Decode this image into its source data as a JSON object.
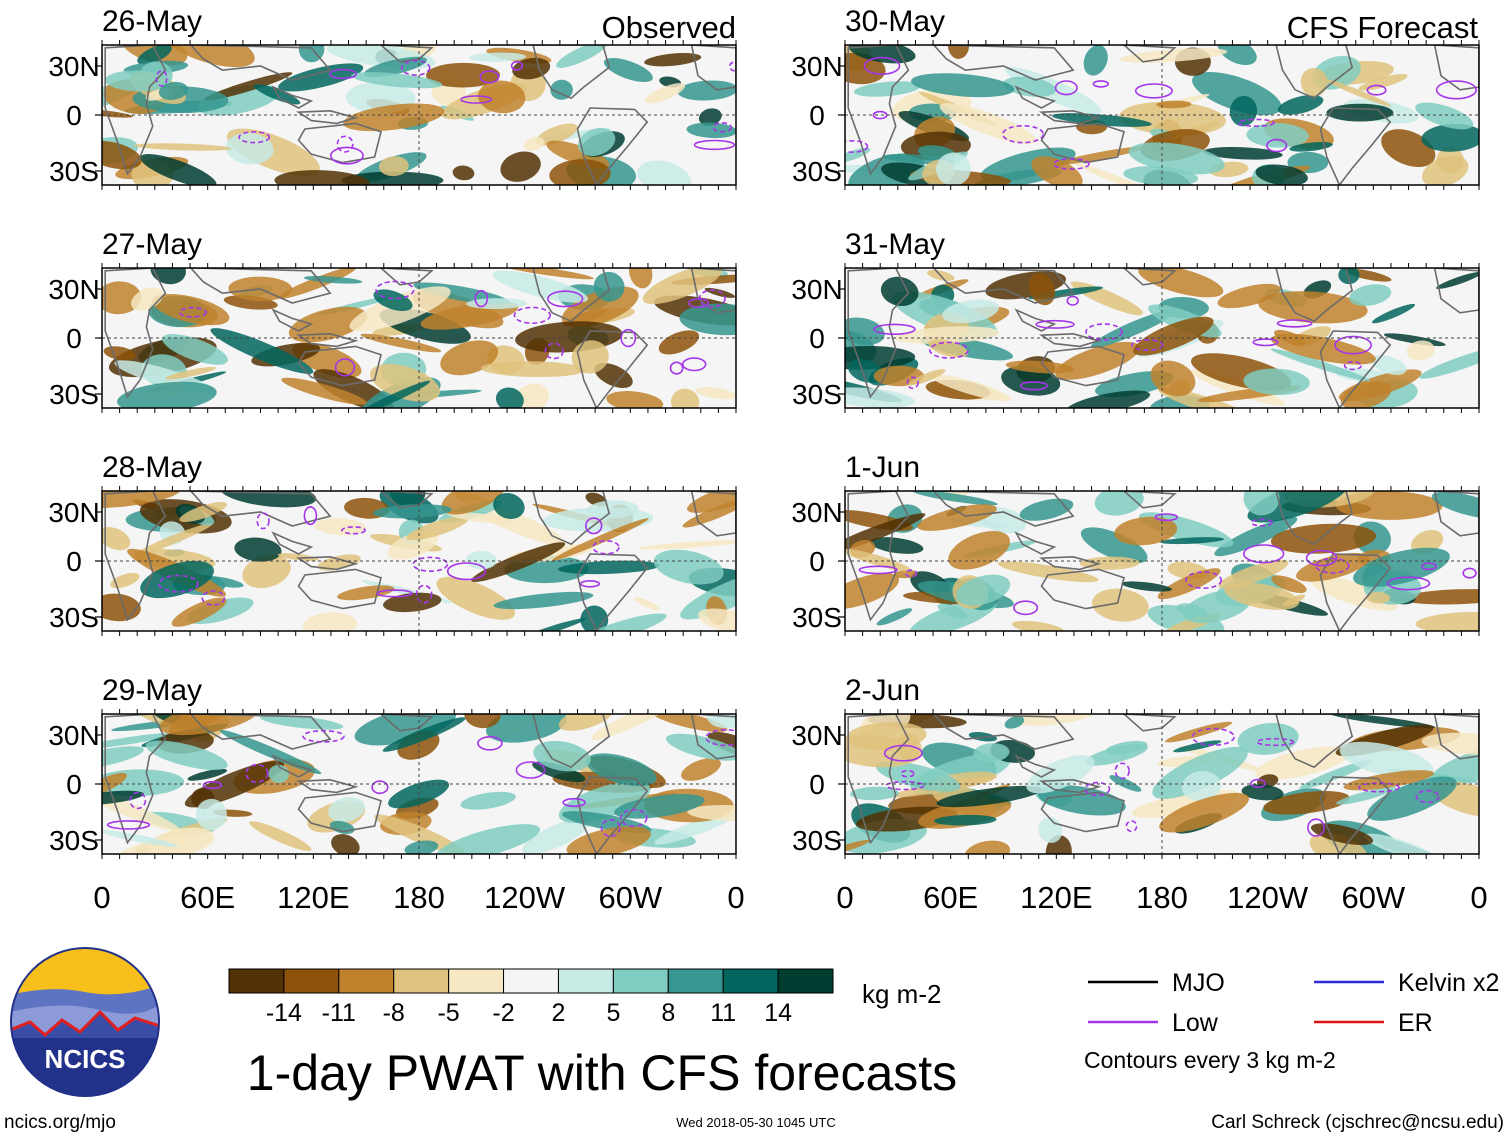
{
  "page": {
    "title": "1-day PWAT with CFS forecasts",
    "observed_label": "Observed",
    "forecast_label": "CFS Forecast",
    "site_link": "ncics.org/mjo",
    "timestamp": "Wed 2018-05-30 1045 UTC",
    "credit": "Carl Schreck (cjschrec@ncsu.edu)",
    "logo_text": "NCICS"
  },
  "chart_data": {
    "type": "heatmap",
    "panels": [
      {
        "date": "26-May",
        "kind": "Observed"
      },
      {
        "date": "27-May",
        "kind": "Observed"
      },
      {
        "date": "28-May",
        "kind": "Observed"
      },
      {
        "date": "29-May",
        "kind": "Observed"
      },
      {
        "date": "30-May",
        "kind": "CFS Forecast"
      },
      {
        "date": "31-May",
        "kind": "CFS Forecast"
      },
      {
        "date": "1-Jun",
        "kind": "CFS Forecast"
      },
      {
        "date": "2-Jun",
        "kind": "CFS Forecast"
      }
    ],
    "y_ticks": [
      "30N",
      "0",
      "30S"
    ],
    "x_ticks": [
      "0",
      "60E",
      "120E",
      "180",
      "120W",
      "60W",
      "0"
    ],
    "colorbar": {
      "unit": "kg m-2",
      "levels": [
        "-14",
        "-11",
        "-8",
        "-5",
        "-2",
        "2",
        "5",
        "8",
        "11",
        "14"
      ],
      "colors": [
        "#523105",
        "#8c5209",
        "#bf812c",
        "#dfc27d",
        "#f6e8c3",
        "#f5f5f5",
        "#c7eae5",
        "#80cdc1",
        "#35978f",
        "#01665e",
        "#003c30"
      ]
    },
    "legend": [
      {
        "label": "MJO",
        "color": "#000000"
      },
      {
        "label": "Kelvin x2",
        "color": "#2b2bd4"
      },
      {
        "label": "Low",
        "color": "#a535e8"
      },
      {
        "label": "ER",
        "color": "#e01010"
      }
    ],
    "contour_note": "Contours every 3 kg m-2",
    "colors": {
      "coast": "#6b6b6b",
      "contour": "#a535e8"
    }
  }
}
